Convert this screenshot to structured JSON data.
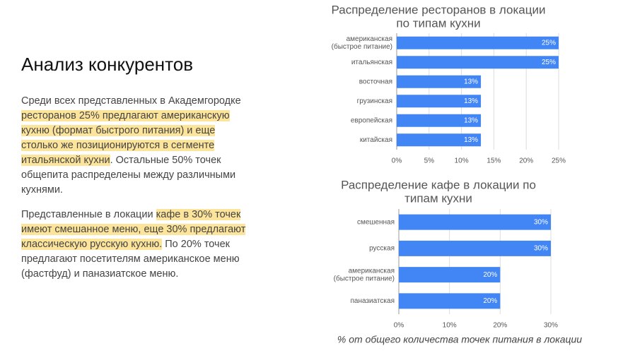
{
  "heading": "Анализ конкурентов",
  "paragraphs": [
    [
      {
        "text": "Среди всех представленных в Академгородке ",
        "highlight": false
      },
      {
        "text": "ресторанов 25% предлагают американскую кухню (формат быстрого питания) и еще столько же позиционируются в сегменте итальянской кухни",
        "highlight": true
      },
      {
        "text": ". Остальные 50% точек общепита распределены между различными кухнями.",
        "highlight": false
      }
    ],
    [
      {
        "text": "Представленные в локации ",
        "highlight": false
      },
      {
        "text": "кафе в 30% точек имеют смешанное меню, еще 30% предлагают классическую русскую кухню.",
        "highlight": true
      },
      {
        "text": " По 20% точек предлагают посетителям американское меню (фастфуд) и паназиатское меню.",
        "highlight": false
      }
    ]
  ],
  "chart_data": [
    {
      "type": "hbar",
      "title": [
        "Распределение ресторанов в локации",
        "по типам кухни"
      ],
      "categories": [
        [
          "американская",
          "(быстрое питание)"
        ],
        [
          "итальянская"
        ],
        [
          "восточная"
        ],
        [
          "грузинская"
        ],
        [
          "европейская"
        ],
        [
          "китайская"
        ]
      ],
      "values": [
        25,
        25,
        13,
        13,
        13,
        13
      ],
      "value_labels": [
        "25%",
        "25%",
        "13%",
        "13%",
        "13%",
        "13%"
      ],
      "color": "#4285f4",
      "xlim": [
        0,
        25
      ],
      "xticks": [
        {
          "value": 0,
          "label": "0%"
        },
        {
          "value": 5,
          "label": "5%"
        },
        {
          "value": 10,
          "label": "10%"
        },
        {
          "value": 15,
          "label": "15%"
        },
        {
          "value": 20,
          "label": "20%"
        },
        {
          "value": 25,
          "label": "25%"
        }
      ],
      "grid": true
    },
    {
      "type": "hbar",
      "title": [
        "Распределение кафе в локации по",
        "типам кухни"
      ],
      "categories": [
        [
          "смешенная"
        ],
        [
          "русская"
        ],
        [
          "американская",
          "(быстрое питание)"
        ],
        [
          "паназиатская"
        ]
      ],
      "values": [
        30,
        30,
        20,
        20
      ],
      "value_labels": [
        "30%",
        "30%",
        "20%",
        "20%"
      ],
      "color": "#4285f4",
      "xlim": [
        0,
        30
      ],
      "xticks": [
        {
          "value": 0,
          "label": "0%"
        },
        {
          "value": 10,
          "label": "10%"
        },
        {
          "value": 20,
          "label": "20%"
        },
        {
          "value": 30,
          "label": "30%"
        }
      ],
      "xlabel": "% от общего количества точек питания в локации",
      "grid": true
    }
  ]
}
